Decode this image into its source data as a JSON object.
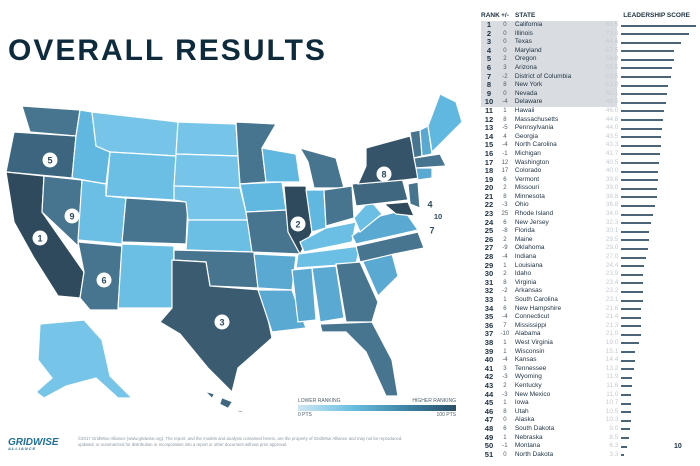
{
  "page": {
    "title": "OVERALL RESULTS",
    "page_number": "10"
  },
  "legend": {
    "lower_label": "LOWER RANKING",
    "higher_label": "HIGHER RANKING",
    "min_label": "0 PTS",
    "max_label": "100 PTS"
  },
  "footer": {
    "logo": "GRIDWISE",
    "logo_sub": "ALLIANCE",
    "copyright": "©2017 GridWise Alliance (www.gridwise.org). The report, and the models and analysis contained herein, are the property of GridWise Alliance and may not be reproduced, updated, or summarized for distribution or incorporation into a report or other document without prior approval."
  },
  "map_markers": [
    "1",
    "2",
    "3",
    "4",
    "5",
    "6",
    "7",
    "8",
    "9",
    "10"
  ],
  "colors": {
    "dark": "#2f4a5d",
    "mid": "#47748f",
    "light": "#60b7e0",
    "lighter": "#76c5e8",
    "highlight_bg": "#d9dde1",
    "score_bar": "#4a6578"
  },
  "table": {
    "headers": {
      "rank": "RANK",
      "change": "+/-",
      "state": "STATE",
      "score": "LEADERSHIP SCORE"
    },
    "max_score": 81.5,
    "rows": [
      {
        "rank": "1",
        "change": "0",
        "state": "California",
        "score": "81.5"
      },
      {
        "rank": "2",
        "change": "0",
        "state": "Illinois",
        "score": "73.0"
      },
      {
        "rank": "3",
        "change": "0",
        "state": "Texas",
        "score": "64.6"
      },
      {
        "rank": "4",
        "change": "0",
        "state": "Maryland",
        "score": "57.5"
      },
      {
        "rank": "5",
        "change": "2",
        "state": "Oregon",
        "score": "56.8"
      },
      {
        "rank": "6",
        "change": "3",
        "state": "Arizona",
        "score": "55.5"
      },
      {
        "rank": "7",
        "change": "-2",
        "state": "District of Columbia",
        "score": "53.5"
      },
      {
        "rank": "8",
        "change": "8",
        "state": "New York",
        "score": "51.0"
      },
      {
        "rank": "9",
        "change": "0",
        "state": "Nevada",
        "score": "50.1"
      },
      {
        "rank": "10",
        "change": "-4",
        "state": "Delaware",
        "score": "48.5"
      },
      {
        "rank": "11",
        "change": "1",
        "state": "Hawaii",
        "score": "46.0"
      },
      {
        "rank": "12",
        "change": "8",
        "state": "Massachusetts",
        "score": "44.8"
      },
      {
        "rank": "13",
        "change": "-5",
        "state": "Pennsylvania",
        "score": "44.0"
      },
      {
        "rank": "14",
        "change": "4",
        "state": "Georgia",
        "score": "43.5"
      },
      {
        "rank": "15",
        "change": "-4",
        "state": "North Carolina",
        "score": "43.3"
      },
      {
        "rank": "16",
        "change": "-1",
        "state": "Michigan",
        "score": "41.7"
      },
      {
        "rank": "17",
        "change": "12",
        "state": "Washington",
        "score": "40.5"
      },
      {
        "rank": "18",
        "change": "17",
        "state": "Colorado",
        "score": "40.0"
      },
      {
        "rank": "19",
        "change": "6",
        "state": "Vermont",
        "score": "39.6"
      },
      {
        "rank": "20",
        "change": "2",
        "state": "Missouri",
        "score": "39.0"
      },
      {
        "rank": "21",
        "change": "8",
        "state": "Minnesota",
        "score": "38.8"
      },
      {
        "rank": "22",
        "change": "-3",
        "state": "Ohio",
        "score": "36.8"
      },
      {
        "rank": "23",
        "change": "25",
        "state": "Rhode Island",
        "score": "34.0"
      },
      {
        "rank": "24",
        "change": "6",
        "state": "New Jersey",
        "score": "32.3"
      },
      {
        "rank": "25",
        "change": "-8",
        "state": "Florida",
        "score": "30.1"
      },
      {
        "rank": "26",
        "change": "2",
        "state": "Maine",
        "score": "29.5"
      },
      {
        "rank": "27",
        "change": "-9",
        "state": "Oklahoma",
        "score": "29.0"
      },
      {
        "rank": "28",
        "change": "-4",
        "state": "Indiana",
        "score": "27.0"
      },
      {
        "rank": "29",
        "change": "1",
        "state": "Louisiana",
        "score": "24.4"
      },
      {
        "rank": "30",
        "change": "2",
        "state": "Idaho",
        "score": "23.9"
      },
      {
        "rank": "31",
        "change": "8",
        "state": "Virginia",
        "score": "23.4"
      },
      {
        "rank": "32",
        "change": "-2",
        "state": "Arkansas",
        "score": "23.2"
      },
      {
        "rank": "33",
        "change": "1",
        "state": "South Carolina",
        "score": "23.1"
      },
      {
        "rank": "34",
        "change": "6",
        "state": "New Hampshire",
        "score": "21.6"
      },
      {
        "rank": "35",
        "change": "-4",
        "state": "Connecticut",
        "score": "21.4"
      },
      {
        "rank": "36",
        "change": "7",
        "state": "Mississippi",
        "score": "21.3"
      },
      {
        "rank": "37",
        "change": "-10",
        "state": "Alabama",
        "score": "21.0"
      },
      {
        "rank": "38",
        "change": "1",
        "state": "West Virginia",
        "score": "19.0"
      },
      {
        "rank": "39",
        "change": "1",
        "state": "Wisconsin",
        "score": "15.1"
      },
      {
        "rank": "40",
        "change": "-4",
        "state": "Kansas",
        "score": "14.4"
      },
      {
        "rank": "41",
        "change": "3",
        "state": "Tennessee",
        "score": "13.2"
      },
      {
        "rank": "42",
        "change": "-3",
        "state": "Wyoming",
        "score": "11.9"
      },
      {
        "rank": "43",
        "change": "2",
        "state": "Kentucky",
        "score": "11.6"
      },
      {
        "rank": "44",
        "change": "-3",
        "state": "New Mexico",
        "score": "11.0"
      },
      {
        "rank": "45",
        "change": "1",
        "state": "Iowa",
        "score": "10.7"
      },
      {
        "rank": "46",
        "change": "8",
        "state": "Utah",
        "score": "10.5"
      },
      {
        "rank": "47",
        "change": "0",
        "state": "Alaska",
        "score": "10.3"
      },
      {
        "rank": "48",
        "change": "6",
        "state": "South Dakota",
        "score": "9.0"
      },
      {
        "rank": "49",
        "change": "1",
        "state": "Nebraska",
        "score": "8.5"
      },
      {
        "rank": "50",
        "change": "-1",
        "state": "Montana",
        "score": "6.3"
      },
      {
        "rank": "51",
        "change": "0",
        "state": "North Dakota",
        "score": "3.3"
      }
    ]
  }
}
